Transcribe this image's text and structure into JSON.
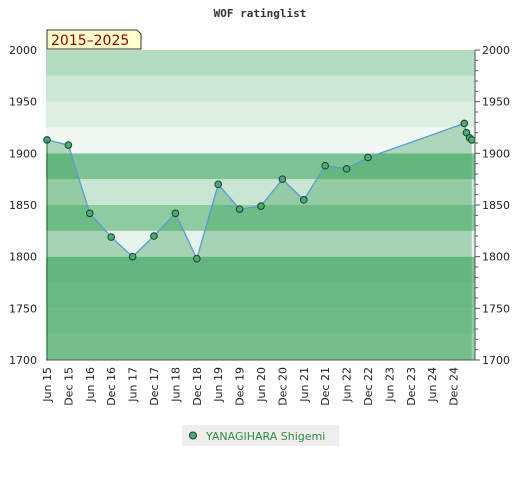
{
  "chart_data": {
    "type": "area",
    "title": "WOF ratinglist",
    "badge": "2015–2025",
    "ylim": [
      1700,
      2000
    ],
    "yticks": [
      1700,
      1750,
      1800,
      1850,
      1900,
      1950,
      2000
    ],
    "xticks": [
      "Jun 15",
      "Dec 15",
      "Jun 16",
      "Dec 16",
      "Jun 17",
      "Dec 17",
      "Jun 18",
      "Dec 18",
      "Jun 19",
      "Dec 19",
      "Jun 20",
      "Dec 20",
      "Jun 21",
      "Dec 21",
      "Jun 22",
      "Dec 22",
      "Jun 23",
      "Dec 23",
      "Jun 24",
      "Dec 24"
    ],
    "series": [
      {
        "name": "YANAGIHARA Shigemi",
        "color": "#3cb371",
        "points": [
          {
            "t": 0,
            "y": 1913
          },
          {
            "t": 1,
            "y": 1908
          },
          {
            "t": 2,
            "y": 1842
          },
          {
            "t": 3,
            "y": 1819
          },
          {
            "t": 4,
            "y": 1800
          },
          {
            "t": 5,
            "y": 1820
          },
          {
            "t": 6,
            "y": 1842
          },
          {
            "t": 7,
            "y": 1798
          },
          {
            "t": 8,
            "y": 1870
          },
          {
            "t": 9,
            "y": 1846
          },
          {
            "t": 10,
            "y": 1849
          },
          {
            "t": 11,
            "y": 1875
          },
          {
            "t": 12,
            "y": 1855
          },
          {
            "t": 13,
            "y": 1888
          },
          {
            "t": 14,
            "y": 1885
          },
          {
            "t": 15,
            "y": 1896
          },
          {
            "t": 19.5,
            "y": 1929
          },
          {
            "t": 19.6,
            "y": 1920
          },
          {
            "t": 19.75,
            "y": 1915
          },
          {
            "t": 19.85,
            "y": 1913
          }
        ]
      }
    ],
    "legend_position": "bottom"
  }
}
